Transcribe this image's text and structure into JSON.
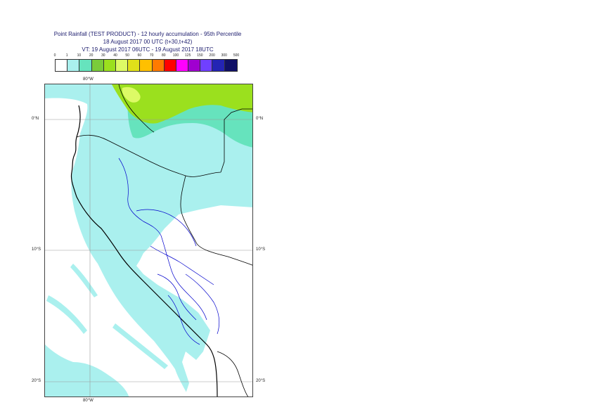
{
  "title": {
    "line1": "Point Rainfall (TEST PRODUCT) - 12 hourly accumulation - 95th Percentile",
    "line2": "18 August 2017 00 UTC (t+30,t+42)",
    "line3": "VT: 19 August 2017 06UTC - 19 August 2017 18UTC"
  },
  "legend": {
    "ticks": [
      "0",
      "1",
      "10",
      "20",
      "30",
      "40",
      "50",
      "60",
      "70",
      "80",
      "100",
      "125",
      "150",
      "200",
      "300",
      "500"
    ],
    "colors": [
      "#ffffff",
      "#aaf0ee",
      "#66e3bd",
      "#7acc3a",
      "#9be01e",
      "#ddfa66",
      "#e0e01a",
      "#ffc000",
      "#ff7a00",
      "#ff0000",
      "#ff00ff",
      "#a000d0",
      "#7040ff",
      "#2424b4",
      "#101066"
    ]
  },
  "axes": {
    "lon_top": "80°W",
    "lon_bottom": "80°W",
    "lat_left": [
      "0°N",
      "10°S",
      "20°S"
    ],
    "lat_right": [
      "0°N",
      "10°S",
      "20°S"
    ]
  },
  "colors": {
    "light_rain": "#aaf0ee",
    "moderate_rain": "#66e3bd",
    "heavy_rain": "#9be01e",
    "coast": "#000000",
    "borders": "#0000cc"
  }
}
